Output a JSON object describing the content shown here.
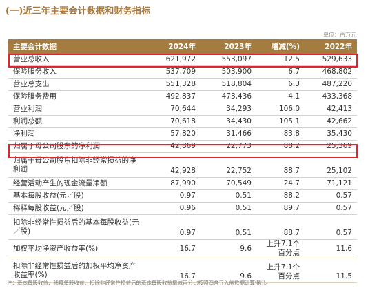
{
  "section_title": "(一)近三年主要会计数据和财务指标",
  "unit": "单位：百万元",
  "table": {
    "headers": [
      "主要会计数据",
      "2024年",
      "2023年",
      "增减(%)",
      "2022年"
    ],
    "rows": [
      {
        "label": "营业总收入",
        "y2024": "621,972",
        "y2023": "553,097",
        "change": "12.5",
        "y2022": "529,633"
      },
      {
        "label": "保险服务收入",
        "y2024": "537,709",
        "y2023": "503,900",
        "change": "6.7",
        "y2022": "468,802"
      },
      {
        "label": "营业总支出",
        "y2024": "551,328",
        "y2023": "518,804",
        "change": "6.3",
        "y2022": "487,220"
      },
      {
        "label": "保险服务费用",
        "y2024": "492,837",
        "y2023": "473,436",
        "change": "4.1",
        "y2022": "433,368"
      },
      {
        "label": "营业利润",
        "y2024": "70,644",
        "y2023": "34,293",
        "change": "106.0",
        "y2022": "42,413"
      },
      {
        "label": "利润总额",
        "y2024": "70,618",
        "y2023": "34,430",
        "change": "105.1",
        "y2022": "42,662"
      },
      {
        "label": "净利润",
        "y2024": "57,820",
        "y2023": "31,466",
        "change": "83.8",
        "y2022": "35,430"
      },
      {
        "label": "归属于母公司股东的净利润",
        "y2024": "42,869",
        "y2023": "22,773",
        "change": "88.2",
        "y2022": "25,369"
      },
      {
        "label": "归属于母公司股东扣除非经常损益的净利润",
        "y2024": "42,928",
        "y2023": "22,752",
        "change": "88.7",
        "y2022": "25,102"
      },
      {
        "label": "经营活动产生的现金流量净额",
        "y2024": "87,990",
        "y2023": "70,549",
        "change": "24.7",
        "y2022": "71,121"
      },
      {
        "label": "基本每股收益(元／股)",
        "y2024": "0.97",
        "y2023": "0.51",
        "change": "88.2",
        "y2022": "0.57"
      },
      {
        "label": "稀释每股收益(元／股)",
        "y2024": "0.96",
        "y2023": "0.51",
        "change": "89.7",
        "y2022": "0.57"
      },
      {
        "label": "扣除非经常性损益后的基本每股收益(元／股)",
        "y2024": "0.97",
        "y2023": "0.51",
        "change": "88.7",
        "y2022": "0.57"
      },
      {
        "label": "加权平均净资产收益率(%)",
        "y2024": "16.7",
        "y2023": "9.6",
        "change": "上升7.1个百分点",
        "y2022": "11.6"
      },
      {
        "label": "扣除非经常性损益后的加权平均净资产收益率(%)",
        "y2024": "16.7",
        "y2023": "9.6",
        "change": "上升7.1个百分点",
        "y2022": "11.5"
      }
    ]
  },
  "footnote": "注：基本每股收益、稀释每股收益、扣除非经常性损益后的基本每股收益增减百分比按照四舍五入前数据计算得出。",
  "colors": {
    "accent": "#a47c3f",
    "title": "#a9783a",
    "highlight_box": "#e5232d"
  }
}
